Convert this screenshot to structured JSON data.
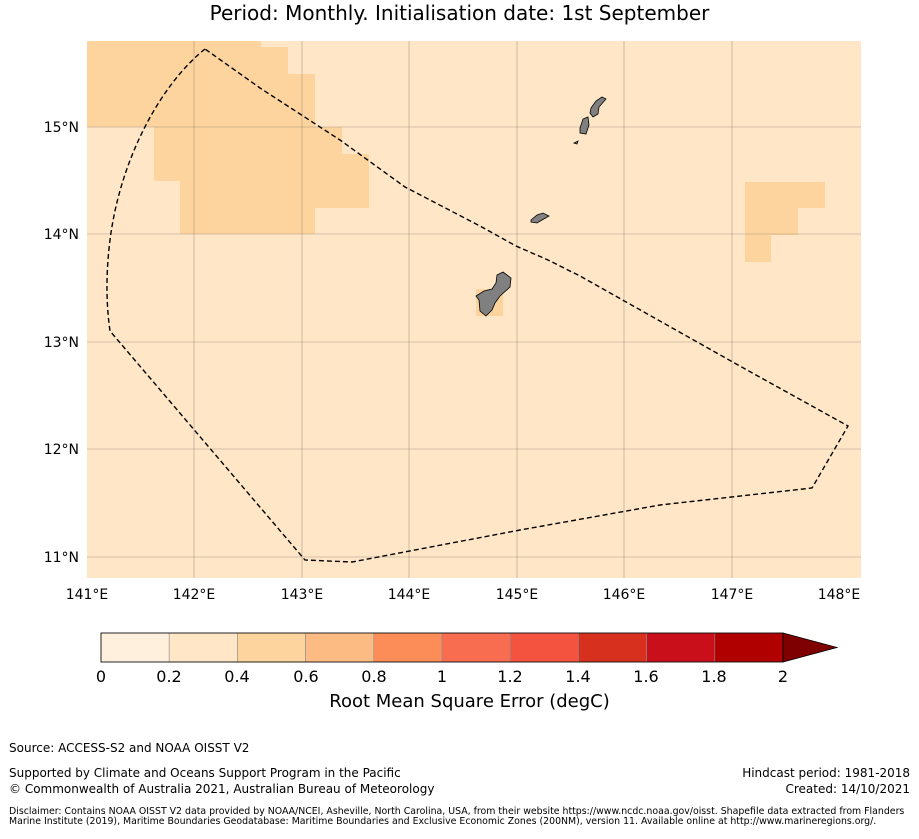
{
  "title": "Period: Monthly. Initialisation date: 1st September",
  "map": {
    "x_ticks": [
      "141°E",
      "142°E",
      "143°E",
      "144°E",
      "145°E",
      "146°E",
      "147°E",
      "148°E"
    ],
    "y_ticks": [
      "15°N",
      "14°N",
      "13°N",
      "12°N",
      "11°N"
    ],
    "background_color": "#fee6c6",
    "highlight_color": "#fdd49e",
    "land_color": "#808080",
    "eez_line_color": "#000000",
    "grid_color": "#8c7a6b"
  },
  "colorbar": {
    "ticks": [
      "0",
      "0.2",
      "0.4",
      "0.6",
      "0.8",
      "1",
      "1.2",
      "1.4",
      "1.6",
      "1.8",
      "2"
    ],
    "colors": [
      "#fff0dd",
      "#fee6c6",
      "#fdd49e",
      "#fdbb84",
      "#fc8d59",
      "#f86c50",
      "#f4533f",
      "#d7301f",
      "#c9101a",
      "#b10000"
    ],
    "extend_color": "#7f0000",
    "label": "Root Mean Square Error (degC)"
  },
  "footer": {
    "source": "Source: ACCESS-S2 and NOAA OISST V2",
    "support": "Supported by Climate and Oceans Support Program in the Pacific",
    "copyright": "© Commonwealth of Australia 2021, Australian Bureau of Meteorology",
    "hindcast": "Hindcast period: 1981-2018",
    "created": "Created: 14/10/2021",
    "disclaimer": "Disclaimer: Contains NOAA OISST V2 data provided by NOAA/NCEI, Asheville, North Carolina, USA, from their website https://www.ncdc.noaa.gov/oisst. Shapefile data extracted from Flanders Marine Institute (2019), Maritime Boundaries Geodatabase: Maritime Boundaries and Exclusive Economic Zones (200NM), version 11. Available online at http://www.marineregions.org/."
  }
}
